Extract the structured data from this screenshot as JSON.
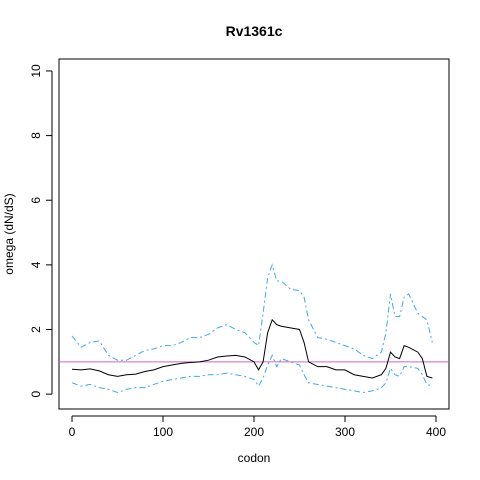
{
  "chart_data": {
    "type": "line",
    "title": "Rv1361c",
    "xlabel": "codon",
    "ylabel": "omega (dN/dS)",
    "x": [
      0,
      10,
      20,
      30,
      40,
      50,
      60,
      70,
      80,
      90,
      100,
      110,
      120,
      130,
      140,
      150,
      160,
      170,
      180,
      190,
      200,
      205,
      210,
      215,
      220,
      225,
      230,
      240,
      250,
      255,
      260,
      270,
      280,
      290,
      300,
      310,
      320,
      330,
      340,
      345,
      350,
      355,
      360,
      365,
      370,
      380,
      385,
      390,
      396
    ],
    "series": [
      {
        "color": "#000000",
        "linestyle": "solid",
        "values": [
          0.77,
          0.75,
          0.78,
          0.72,
          0.6,
          0.55,
          0.6,
          0.62,
          0.7,
          0.75,
          0.85,
          0.9,
          0.95,
          0.98,
          1.0,
          1.05,
          1.15,
          1.18,
          1.2,
          1.15,
          1.0,
          0.75,
          1.0,
          1.9,
          2.3,
          2.15,
          2.1,
          2.05,
          2.0,
          1.6,
          1.0,
          0.85,
          0.85,
          0.75,
          0.75,
          0.6,
          0.55,
          0.5,
          0.6,
          0.8,
          1.3,
          1.15,
          1.1,
          1.5,
          1.45,
          1.3,
          1.1,
          0.55,
          0.5
        ]
      },
      {
        "color": "#3fa9e6",
        "linestyle": "dashed",
        "values": [
          1.8,
          1.45,
          1.6,
          1.65,
          1.2,
          1.05,
          1.05,
          1.2,
          1.35,
          1.4,
          1.5,
          1.5,
          1.6,
          1.75,
          1.75,
          1.85,
          2.05,
          2.15,
          2.0,
          1.9,
          1.6,
          1.5,
          2.5,
          3.6,
          4.0,
          3.5,
          3.5,
          3.25,
          3.2,
          3.0,
          2.3,
          1.75,
          1.7,
          1.6,
          1.5,
          1.4,
          1.2,
          1.1,
          1.3,
          1.9,
          3.1,
          2.4,
          2.4,
          3.0,
          3.1,
          2.5,
          2.4,
          2.3,
          1.6
        ]
      },
      {
        "color": "#3fa9e6",
        "linestyle": "dashed",
        "values": [
          0.35,
          0.25,
          0.3,
          0.2,
          0.15,
          0.05,
          0.15,
          0.2,
          0.2,
          0.3,
          0.4,
          0.45,
          0.5,
          0.55,
          0.55,
          0.6,
          0.6,
          0.65,
          0.6,
          0.55,
          0.45,
          0.25,
          0.5,
          0.9,
          1.2,
          0.85,
          1.1,
          1.0,
          0.9,
          0.6,
          0.35,
          0.3,
          0.25,
          0.2,
          0.15,
          0.1,
          0.05,
          0.1,
          0.2,
          0.35,
          0.8,
          0.6,
          0.55,
          0.85,
          0.85,
          0.8,
          0.6,
          0.3,
          0.25
        ]
      }
    ],
    "hline": 1,
    "hline_color": "#cc66cc",
    "xlim": [
      -14.3,
      414.3
    ],
    "ylim": [
      -0.46,
      10.37
    ],
    "xticks": [
      0,
      100,
      200,
      300,
      400
    ],
    "yticks": [
      0,
      2,
      4,
      6,
      8,
      10
    ]
  }
}
